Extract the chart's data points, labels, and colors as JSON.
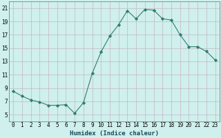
{
  "x": [
    0,
    1,
    2,
    3,
    4,
    5,
    6,
    7,
    8,
    9,
    10,
    11,
    12,
    13,
    14,
    15,
    16,
    17,
    18,
    19,
    20,
    21,
    22,
    23
  ],
  "y": [
    8.5,
    7.8,
    7.2,
    6.9,
    6.4,
    6.4,
    6.5,
    5.2,
    6.8,
    11.2,
    14.4,
    16.8,
    18.5,
    20.6,
    19.4,
    20.8,
    20.7,
    19.4,
    19.2,
    17.0,
    15.2,
    15.2,
    14.5,
    13.2
  ],
  "line_color": "#2e7d6e",
  "marker": "D",
  "marker_size": 2.2,
  "bg_color": "#cff0ec",
  "grid_color_major": "#c4a8b8",
  "grid_color_minor": "#ddd0d8",
  "xlabel": "Humidex (Indice chaleur)",
  "xlabel_fontsize": 6.5,
  "tick_fontsize": 5.5,
  "ylim": [
    4,
    22
  ],
  "xlim": [
    -0.5,
    23.5
  ],
  "yticks": [
    5,
    7,
    9,
    11,
    13,
    15,
    17,
    19,
    21
  ],
  "xticks": [
    0,
    1,
    2,
    3,
    4,
    5,
    6,
    7,
    8,
    9,
    10,
    11,
    12,
    13,
    14,
    15,
    16,
    17,
    18,
    19,
    20,
    21,
    22,
    23
  ]
}
